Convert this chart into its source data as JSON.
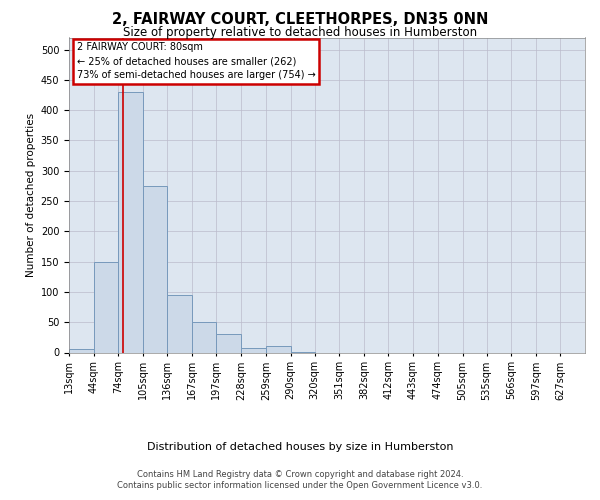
{
  "title": "2, FAIRWAY COURT, CLEETHORPES, DN35 0NN",
  "subtitle": "Size of property relative to detached houses in Humberston",
  "xlabel": "Distribution of detached houses by size in Humberston",
  "ylabel": "Number of detached properties",
  "footnote1": "Contains HM Land Registry data © Crown copyright and database right 2024.",
  "footnote2": "Contains public sector information licensed under the Open Government Licence v3.0.",
  "annotation_title": "2 FAIRWAY COURT: 80sqm",
  "annotation_line1": "← 25% of detached houses are smaller (262)",
  "annotation_line2": "73% of semi-detached houses are larger (754) →",
  "property_size": 80,
  "bar_color": "#ccd9e8",
  "bar_edge_color": "#7799bb",
  "vline_color": "#cc0000",
  "annotation_box_color": "#cc0000",
  "background_color": "#ffffff",
  "plot_bg_color": "#dde6f0",
  "grid_color": "#bbbbcc",
  "categories": [
    "13sqm",
    "44sqm",
    "74sqm",
    "105sqm",
    "136sqm",
    "167sqm",
    "197sqm",
    "228sqm",
    "259sqm",
    "290sqm",
    "320sqm",
    "351sqm",
    "382sqm",
    "412sqm",
    "443sqm",
    "474sqm",
    "505sqm",
    "535sqm",
    "566sqm",
    "597sqm",
    "627sqm"
  ],
  "values": [
    5,
    150,
    430,
    275,
    95,
    50,
    30,
    7,
    10,
    1,
    0,
    0,
    0,
    0,
    0,
    0,
    0,
    0,
    0,
    0,
    0
  ],
  "bin_edges": [
    13,
    44,
    74,
    105,
    136,
    167,
    197,
    228,
    259,
    290,
    320,
    351,
    382,
    412,
    443,
    474,
    505,
    535,
    566,
    597,
    627,
    658
  ],
  "ylim": [
    0,
    520
  ],
  "yticks": [
    0,
    50,
    100,
    150,
    200,
    250,
    300,
    350,
    400,
    450,
    500
  ],
  "title_fontsize": 10.5,
  "subtitle_fontsize": 8.5,
  "ylabel_fontsize": 7.5,
  "tick_fontsize": 7,
  "annotation_fontsize": 7,
  "xlabel_fontsize": 8,
  "footnote_fontsize": 6
}
